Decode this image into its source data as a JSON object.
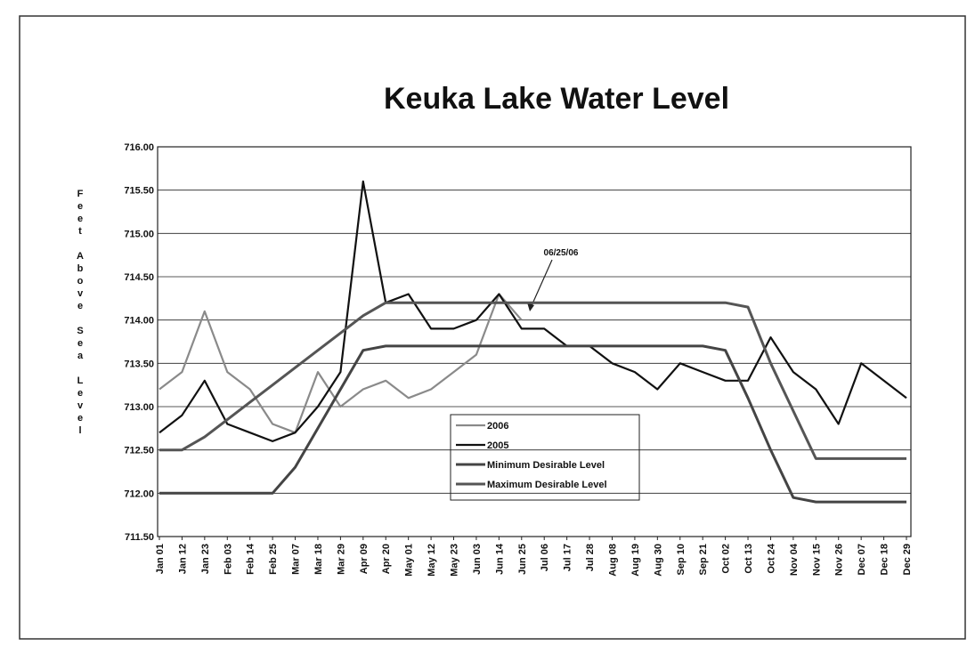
{
  "chart_data": {
    "type": "line",
    "title": "Keuka Lake Water Level",
    "y_label": "Feet Above Sea Level",
    "annotation": "06/25/06",
    "categories": [
      "Jan 01",
      "Jan 12",
      "Jan 23",
      "Feb 03",
      "Feb 14",
      "Feb 25",
      "Mar 07",
      "Mar 18",
      "Mar 29",
      "Apr 09",
      "Apr 20",
      "May 01",
      "May 12",
      "May 23",
      "Jun 03",
      "Jun 14",
      "Jun 25",
      "Jul 06",
      "Jul 17",
      "Jul 28",
      "Aug 08",
      "Aug 19",
      "Aug 30",
      "Sep 10",
      "Sep 21",
      "Oct 02",
      "Oct 13",
      "Oct 24",
      "Nov 04",
      "Nov 15",
      "Nov 26",
      "Dec 07",
      "Dec 18",
      "Dec 29"
    ],
    "series": [
      {
        "name": "2006",
        "color": "#8a8a8a",
        "values": [
          713.2,
          713.4,
          714.1,
          713.4,
          713.2,
          712.8,
          712.7,
          713.4,
          713.0,
          713.2,
          713.3,
          713.1,
          713.2,
          713.4,
          713.6,
          714.3,
          714.0,
          null,
          null,
          null,
          null,
          null,
          null,
          null,
          null,
          null,
          null,
          null,
          null,
          null,
          null,
          null,
          null,
          null
        ]
      },
      {
        "name": "2005",
        "color": "#111111",
        "values": [
          712.7,
          712.9,
          713.3,
          712.8,
          712.7,
          712.6,
          712.7,
          713.0,
          713.4,
          715.6,
          714.2,
          714.3,
          713.9,
          713.9,
          714.0,
          714.3,
          713.9,
          713.9,
          713.7,
          713.7,
          713.5,
          713.4,
          713.2,
          713.5,
          713.4,
          713.3,
          713.3,
          713.8,
          713.4,
          713.2,
          712.8,
          713.5,
          713.3,
          713.1
        ]
      },
      {
        "name": "Minimum Desirable Level",
        "color": "#444444",
        "values": [
          712.0,
          712.0,
          712.0,
          712.0,
          712.0,
          712.0,
          712.3,
          712.75,
          713.2,
          713.65,
          713.7,
          713.7,
          713.7,
          713.7,
          713.7,
          713.7,
          713.7,
          713.7,
          713.7,
          713.7,
          713.7,
          713.7,
          713.7,
          713.7,
          713.7,
          713.65,
          713.1,
          712.5,
          711.95,
          711.9,
          711.9,
          711.9,
          711.9,
          711.9
        ]
      },
      {
        "name": "Maximum Desirable Level",
        "color": "#555555",
        "values": [
          712.5,
          712.5,
          712.65,
          712.85,
          713.05,
          713.25,
          713.45,
          713.65,
          713.85,
          714.05,
          714.2,
          714.2,
          714.2,
          714.2,
          714.2,
          714.2,
          714.2,
          714.2,
          714.2,
          714.2,
          714.2,
          714.2,
          714.2,
          714.2,
          714.2,
          714.2,
          714.15,
          713.5,
          712.95,
          712.4,
          712.4,
          712.4,
          712.4,
          712.4
        ]
      }
    ],
    "ylim": [
      711.5,
      716
    ],
    "yticks": [
      {
        "value": 711.5,
        "label": "711.50"
      },
      {
        "value": 712,
        "label": "712.00"
      },
      {
        "value": 712.5,
        "label": "712.50"
      },
      {
        "value": 713,
        "label": "713.00"
      },
      {
        "value": 713.5,
        "label": "713.50"
      },
      {
        "value": 714,
        "label": "714.00"
      },
      {
        "value": 714.5,
        "label": "714.50"
      },
      {
        "value": 715,
        "label": "715.00"
      },
      {
        "value": 715.5,
        "label": "715.50"
      },
      {
        "value": 716,
        "label": "716.00"
      }
    ],
    "grid": true
  }
}
